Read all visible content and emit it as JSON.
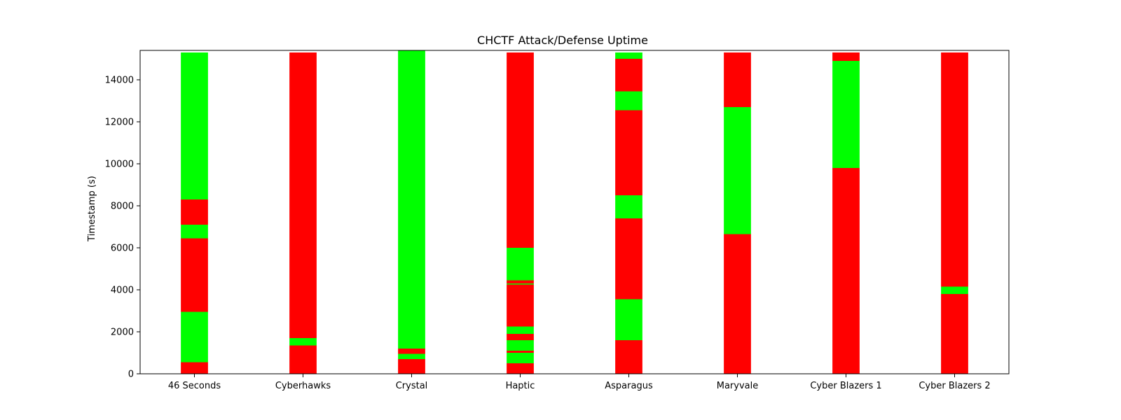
{
  "chart_data": {
    "type": "bar",
    "stacked": true,
    "title": "CHCTF Attack/Defense Uptime",
    "xlabel": "",
    "ylabel": "Timestamp (s)",
    "ylim": [
      0,
      15400
    ],
    "yticks": [
      0,
      2000,
      4000,
      6000,
      8000,
      10000,
      12000,
      14000
    ],
    "grid": false,
    "colors": {
      "up": "#00ff00",
      "down": "#ff0000"
    },
    "categories": [
      "46 Seconds",
      "Cyberhawks",
      "Crystal",
      "Haptic",
      "Asparagus",
      "Maryvale",
      "Cyber Blazers 1",
      "Cyber Blazers 2"
    ],
    "segments": [
      [
        {
          "start": 0,
          "end": 550,
          "state": "down"
        },
        {
          "start": 550,
          "end": 2950,
          "state": "up"
        },
        {
          "start": 2950,
          "end": 6450,
          "state": "down"
        },
        {
          "start": 6450,
          "end": 7100,
          "state": "up"
        },
        {
          "start": 7100,
          "end": 8300,
          "state": "down"
        },
        {
          "start": 8300,
          "end": 15300,
          "state": "up"
        }
      ],
      [
        {
          "start": 0,
          "end": 1350,
          "state": "down"
        },
        {
          "start": 1350,
          "end": 1700,
          "state": "up"
        },
        {
          "start": 1700,
          "end": 15300,
          "state": "down"
        }
      ],
      [
        {
          "start": 0,
          "end": 700,
          "state": "down"
        },
        {
          "start": 700,
          "end": 950,
          "state": "up"
        },
        {
          "start": 950,
          "end": 1200,
          "state": "down"
        },
        {
          "start": 1200,
          "end": 15400,
          "state": "up"
        }
      ],
      [
        {
          "start": 0,
          "end": 500,
          "state": "down"
        },
        {
          "start": 500,
          "end": 1000,
          "state": "up"
        },
        {
          "start": 1000,
          "end": 1100,
          "state": "down"
        },
        {
          "start": 1100,
          "end": 1600,
          "state": "up"
        },
        {
          "start": 1600,
          "end": 1900,
          "state": "down"
        },
        {
          "start": 1900,
          "end": 2250,
          "state": "up"
        },
        {
          "start": 2250,
          "end": 4250,
          "state": "down"
        },
        {
          "start": 4250,
          "end": 4300,
          "state": "up"
        },
        {
          "start": 4300,
          "end": 4450,
          "state": "down"
        },
        {
          "start": 4450,
          "end": 6000,
          "state": "up"
        },
        {
          "start": 6000,
          "end": 15300,
          "state": "down"
        }
      ],
      [
        {
          "start": 0,
          "end": 1600,
          "state": "down"
        },
        {
          "start": 1600,
          "end": 3550,
          "state": "up"
        },
        {
          "start": 3550,
          "end": 7400,
          "state": "down"
        },
        {
          "start": 7400,
          "end": 8500,
          "state": "up"
        },
        {
          "start": 8500,
          "end": 12550,
          "state": "down"
        },
        {
          "start": 12550,
          "end": 13450,
          "state": "up"
        },
        {
          "start": 13450,
          "end": 15000,
          "state": "down"
        },
        {
          "start": 15000,
          "end": 15300,
          "state": "up"
        }
      ],
      [
        {
          "start": 0,
          "end": 6650,
          "state": "down"
        },
        {
          "start": 6650,
          "end": 12700,
          "state": "up"
        },
        {
          "start": 12700,
          "end": 15300,
          "state": "down"
        }
      ],
      [
        {
          "start": 0,
          "end": 9800,
          "state": "down"
        },
        {
          "start": 9800,
          "end": 14900,
          "state": "up"
        },
        {
          "start": 14900,
          "end": 15300,
          "state": "down"
        }
      ],
      [
        {
          "start": 0,
          "end": 3800,
          "state": "down"
        },
        {
          "start": 3800,
          "end": 4150,
          "state": "up"
        },
        {
          "start": 4150,
          "end": 15300,
          "state": "down"
        }
      ]
    ]
  }
}
